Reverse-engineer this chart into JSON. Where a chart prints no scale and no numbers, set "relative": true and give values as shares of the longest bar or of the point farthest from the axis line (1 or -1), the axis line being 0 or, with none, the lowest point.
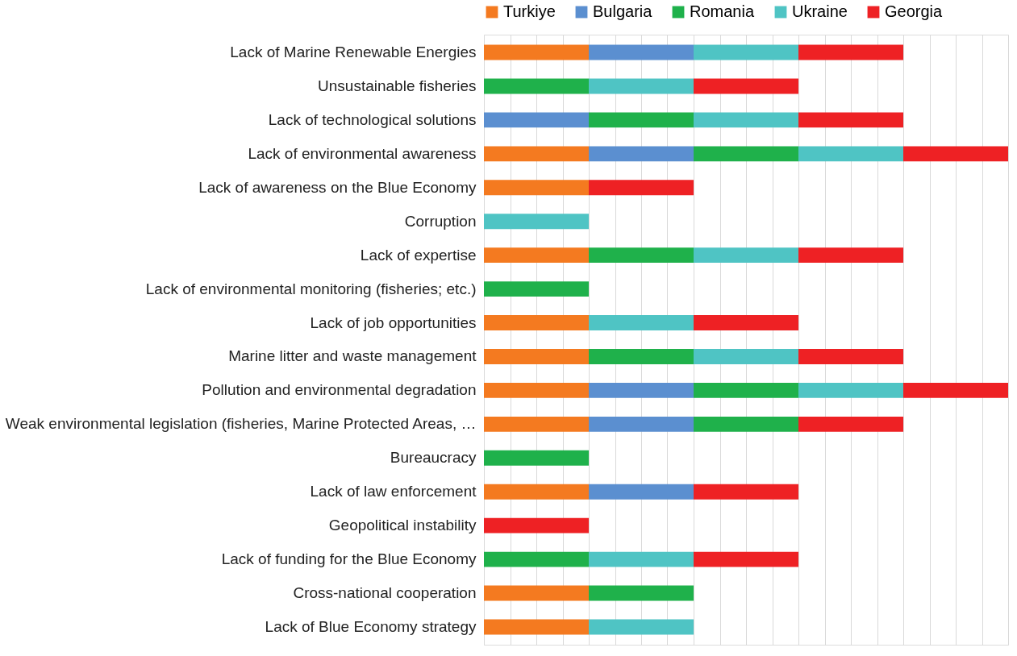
{
  "chart_data": {
    "type": "bar",
    "orientation": "horizontal",
    "stacked": true,
    "relative": true,
    "grid": "x",
    "legend": "top",
    "categories": [
      "Lack of Marine Renewable Energies",
      "Unsustainable fisheries",
      "Lack of technological solutions",
      "Lack of environmental awareness",
      "Lack of awareness on the Blue Economy",
      "Corruption",
      "Lack of expertise",
      "Lack of environmental monitoring (fisheries; etc.)",
      "Lack of job opportunities",
      "Marine litter and waste management",
      "Pollution  and environmental degradation",
      "Weak environmental legislation (fisheries, Marine Protected Areas, …",
      "Bureaucracy",
      "Lack of law enforcement",
      "Geopolitical instability",
      "Lack of funding for the Blue Economy",
      "Cross-national cooperation",
      "Lack of Blue Economy strategy"
    ],
    "series": [
      {
        "name": "Turkiye",
        "color": "#f47a20",
        "values": [
          0.2,
          null,
          null,
          0.2,
          0.2,
          null,
          0.2,
          null,
          0.2,
          0.2,
          0.2,
          0.2,
          null,
          0.2,
          null,
          null,
          0.2,
          0.2
        ]
      },
      {
        "name": "Bulgaria",
        "color": "#5b8fd0",
        "values": [
          0.2,
          null,
          0.2,
          0.2,
          null,
          null,
          null,
          null,
          null,
          null,
          0.2,
          0.2,
          null,
          0.2,
          null,
          null,
          null,
          null
        ]
      },
      {
        "name": "Romania",
        "color": "#1fb14b",
        "values": [
          null,
          0.2,
          0.2,
          0.2,
          null,
          null,
          0.2,
          0.2,
          null,
          0.2,
          0.2,
          0.2,
          0.2,
          null,
          null,
          0.2,
          0.2,
          null
        ]
      },
      {
        "name": "Ukraine",
        "color": "#4fc4c4",
        "values": [
          0.2,
          0.2,
          0.2,
          0.2,
          null,
          0.2,
          0.2,
          null,
          0.2,
          0.2,
          0.2,
          null,
          null,
          null,
          null,
          0.2,
          null,
          0.2
        ]
      },
      {
        "name": "Georgia",
        "color": "#ee2124",
        "values": [
          0.2,
          0.2,
          0.2,
          0.2,
          0.2,
          null,
          0.2,
          null,
          0.2,
          0.2,
          0.2,
          0.2,
          null,
          0.2,
          0.2,
          0.2,
          null,
          null
        ]
      }
    ]
  }
}
